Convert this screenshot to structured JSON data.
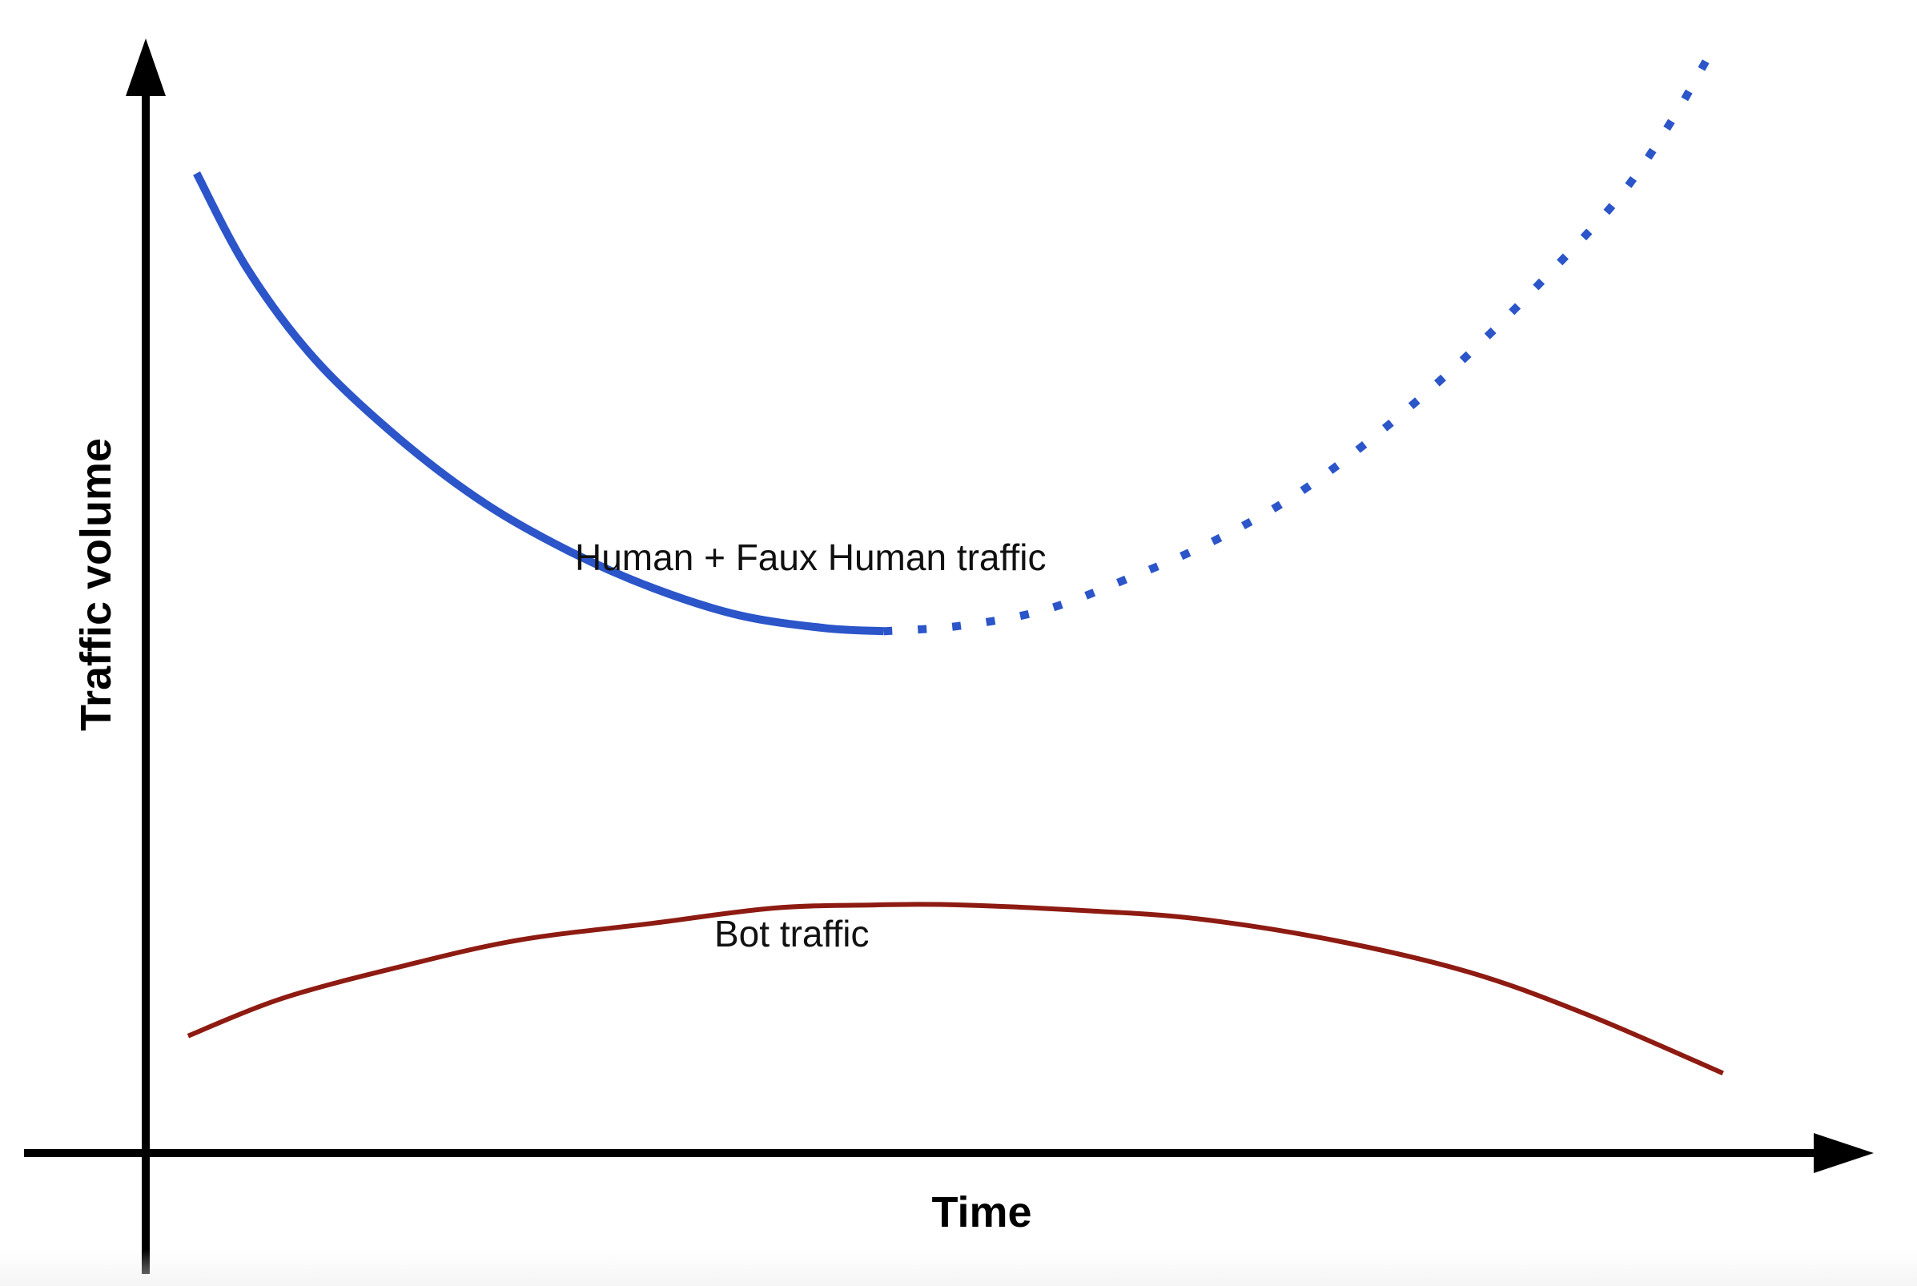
{
  "chart_data": {
    "type": "line",
    "title": "",
    "xlabel": "Time",
    "ylabel": "Traffic volume",
    "xlim": [
      0,
      100
    ],
    "ylim": [
      0,
      100
    ],
    "grid": false,
    "legend": "none",
    "series": [
      {
        "name": "Human + Faux Human traffic",
        "color": "#2b55c9",
        "style": "solid",
        "x": [
          3,
          6,
          10,
          15,
          20,
          25,
          30,
          35,
          40,
          43.5
        ],
        "y": [
          92,
          83,
          74.5,
          67,
          61,
          56.5,
          53,
          50.5,
          49.3,
          49
        ]
      },
      {
        "name": "Human + Faux Human traffic",
        "color": "#2b55c9",
        "style": "dotted",
        "x": [
          43.5,
          48,
          53,
          58,
          63,
          68,
          73,
          78,
          83,
          87,
          90,
          92.5
        ],
        "y": [
          49,
          49.5,
          51,
          54,
          57.5,
          62,
          68,
          75,
          83,
          90,
          97,
          104
        ]
      },
      {
        "name": "Bot traffic",
        "color": "#8e1b12",
        "style": "solid",
        "x": [
          2.5,
          8,
          15,
          22,
          30,
          37,
          43,
          48,
          55,
          62,
          70,
          78,
          85,
          93
        ],
        "y": [
          11,
          14.5,
          17.5,
          20,
          21.6,
          23,
          23.3,
          23.3,
          22.8,
          22,
          20,
          17,
          13,
          7.5
        ]
      }
    ],
    "annotations": [
      {
        "text": "Human + Faux Human traffic",
        "x": 36,
        "y": 64.5
      },
      {
        "text": "Bot traffic",
        "x": 34,
        "y": 18.5
      }
    ]
  }
}
